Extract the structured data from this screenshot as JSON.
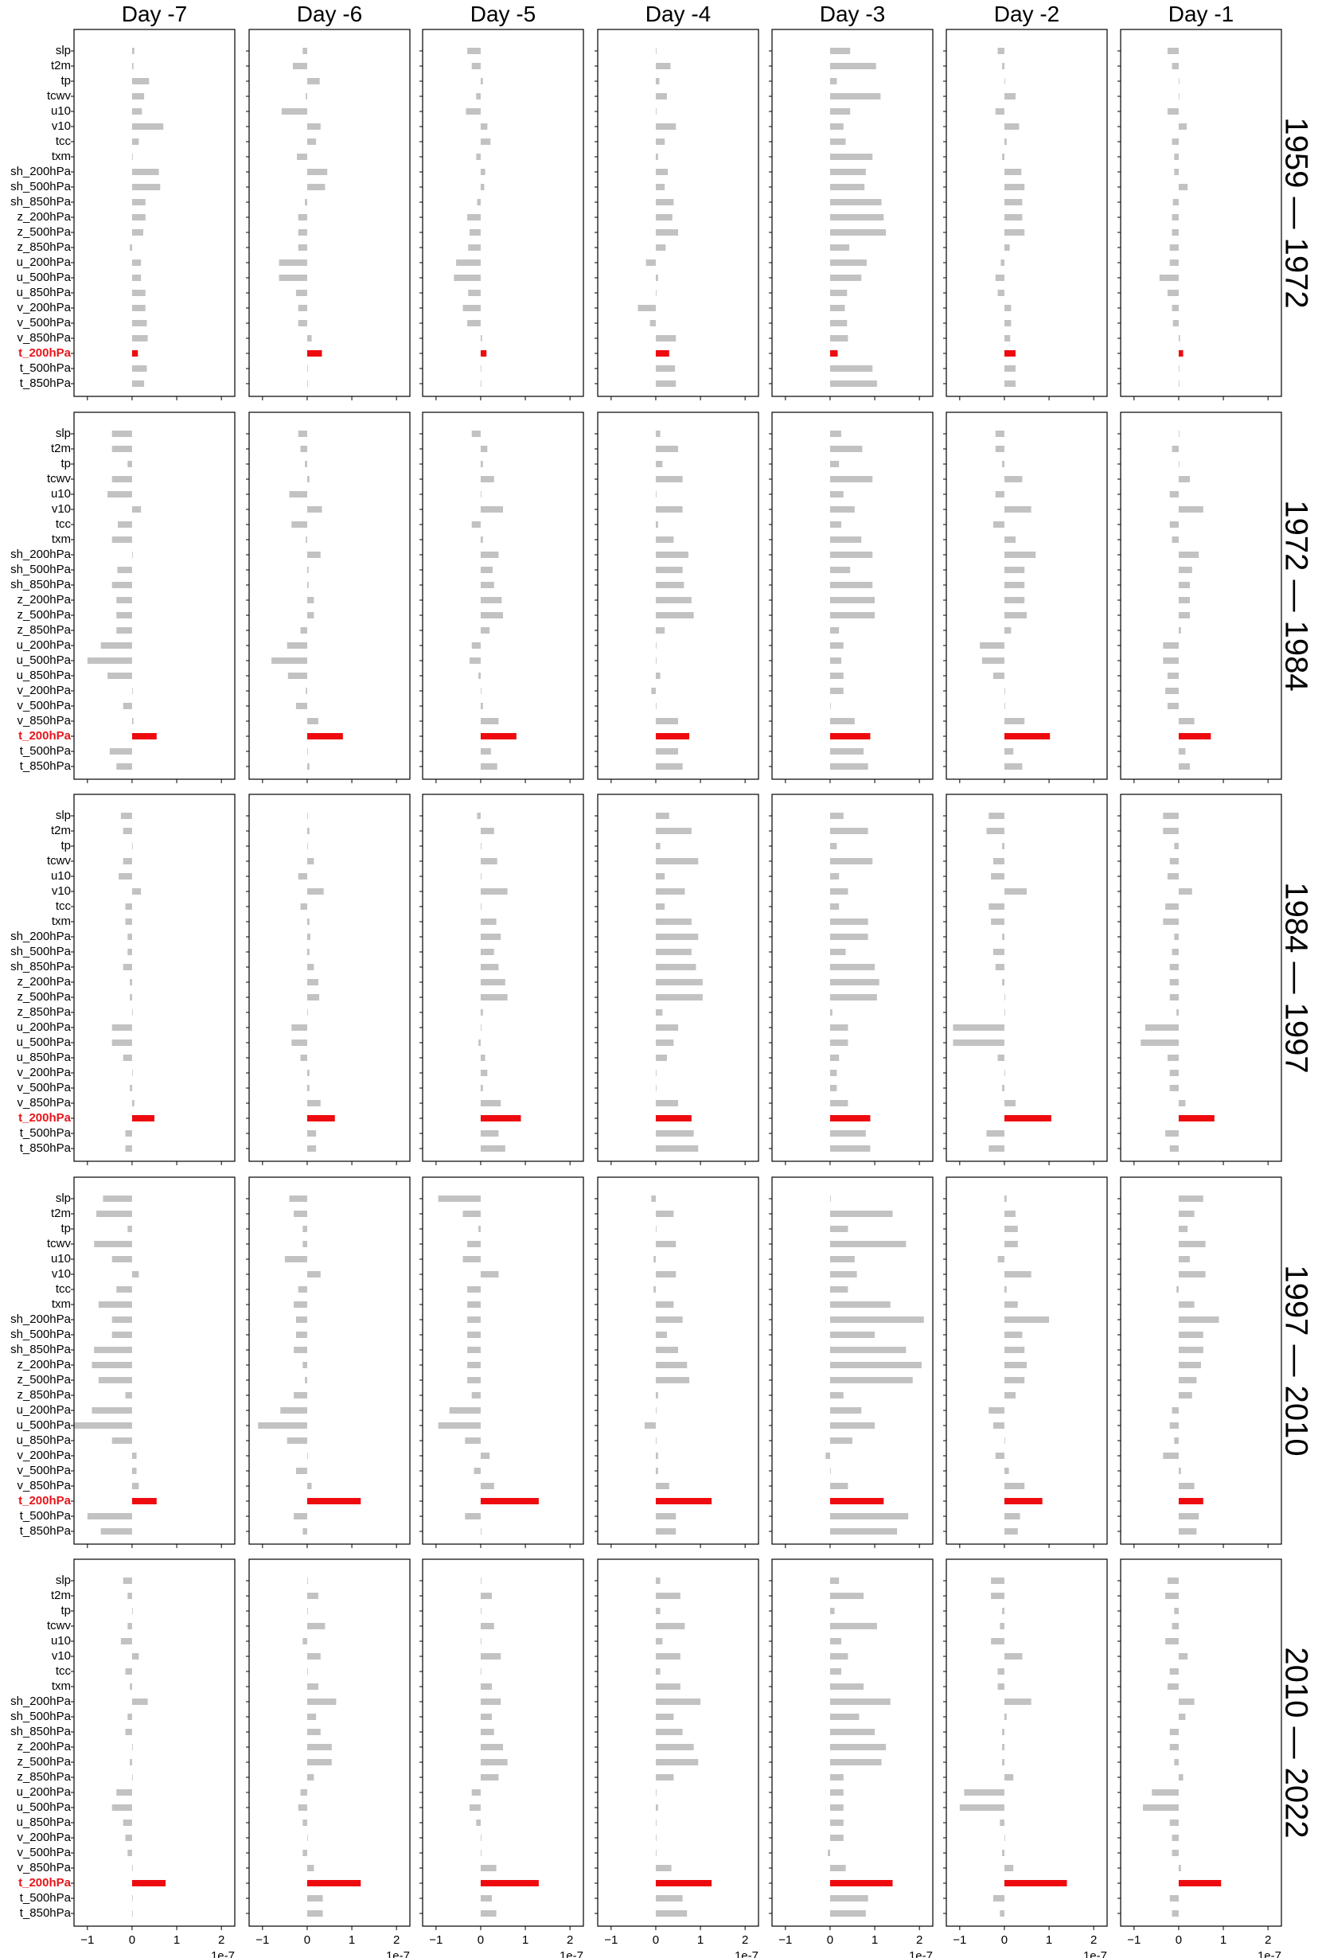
{
  "chart_data": {
    "type": "bar",
    "orientation": "horizontal",
    "columns": [
      "Day -7",
      "Day -6",
      "Day -5",
      "Day -4",
      "Day -3",
      "Day -2",
      "Day -1"
    ],
    "rows": [
      "1959 — 1972",
      "1972 — 1984",
      "1984 — 1997",
      "1997 — 2010",
      "2010 — 2022"
    ],
    "variables": [
      "slp",
      "t2m",
      "tp",
      "tcwv",
      "u10",
      "v10",
      "tcc",
      "txm",
      "sh_200hPa",
      "sh_500hPa",
      "sh_850hPa",
      "z_200hPa",
      "z_500hPa",
      "z_850hPa",
      "u_200hPa",
      "u_500hPa",
      "u_850hPa",
      "v_200hPa",
      "v_500hPa",
      "v_850hPa",
      "t_200hPa",
      "t_500hPa",
      "t_850hPa"
    ],
    "highlight_variable": "t_200hPa",
    "colors": {
      "bar": "#c2c2c2",
      "highlight": "#ee0b0f",
      "highlight_label": "#e8151b"
    },
    "xlim": [
      -1.3,
      2.3
    ],
    "xticks": [
      -1,
      0,
      1,
      2
    ],
    "xtick_labels": [
      "−1",
      "0",
      "1",
      "2"
    ],
    "x_offset_label": "1e-7",
    "grid": false,
    "values": [
      [
        [
          0.05,
          0.03,
          0.38,
          0.27,
          0.22,
          0.7,
          0.15,
          0.0,
          0.6,
          0.63,
          0.3,
          0.3,
          0.25,
          -0.05,
          0.2,
          0.2,
          0.3,
          0.3,
          0.33,
          0.35,
          0.13,
          0.33,
          0.27
        ],
        [
          -0.1,
          -0.32,
          0.28,
          -0.03,
          -0.57,
          0.3,
          0.2,
          -0.23,
          0.45,
          0.4,
          -0.05,
          -0.2,
          -0.2,
          -0.2,
          -0.63,
          -0.63,
          -0.25,
          -0.2,
          -0.2,
          0.1,
          0.33,
          0.0,
          0.0
        ],
        [
          -0.3,
          -0.2,
          0.05,
          -0.1,
          -0.33,
          0.15,
          0.22,
          -0.1,
          0.1,
          0.08,
          -0.08,
          -0.3,
          -0.25,
          -0.28,
          -0.55,
          -0.6,
          -0.28,
          -0.4,
          -0.3,
          0.03,
          0.13,
          0.0,
          0.0
        ],
        [
          0.0,
          0.33,
          0.08,
          0.25,
          0.0,
          0.45,
          0.2,
          0.05,
          0.27,
          0.2,
          0.4,
          0.37,
          0.5,
          0.22,
          -0.22,
          0.05,
          0.0,
          -0.4,
          -0.13,
          0.45,
          0.3,
          0.43,
          0.45
        ],
        [
          0.45,
          1.03,
          0.15,
          1.13,
          0.45,
          0.3,
          0.35,
          0.95,
          0.8,
          0.77,
          1.15,
          1.2,
          1.25,
          0.43,
          0.82,
          0.7,
          0.38,
          0.33,
          0.38,
          0.4,
          0.17,
          0.95,
          1.05
        ],
        [
          -0.15,
          -0.05,
          0.0,
          0.25,
          -0.2,
          0.33,
          0.05,
          -0.05,
          0.38,
          0.45,
          0.4,
          0.4,
          0.45,
          0.12,
          -0.08,
          -0.2,
          -0.15,
          0.15,
          0.15,
          0.13,
          0.25,
          0.25,
          0.25
        ],
        [
          -0.25,
          -0.15,
          0.0,
          0.0,
          -0.25,
          0.18,
          -0.15,
          -0.1,
          -0.1,
          0.2,
          -0.13,
          -0.15,
          -0.15,
          -0.2,
          -0.2,
          -0.43,
          -0.25,
          -0.15,
          -0.13,
          0.03,
          0.1,
          0.0,
          0.0
        ]
      ],
      [
        [
          -0.45,
          -0.45,
          -0.1,
          -0.45,
          -0.55,
          0.2,
          -0.32,
          -0.45,
          0.0,
          -0.33,
          -0.45,
          -0.35,
          -0.35,
          -0.35,
          -0.7,
          -1.0,
          -0.55,
          0.0,
          -0.2,
          0.03,
          0.55,
          -0.5,
          -0.35
        ],
        [
          -0.2,
          -0.15,
          -0.05,
          0.05,
          -0.4,
          0.33,
          -0.35,
          -0.03,
          0.3,
          0.03,
          0.03,
          0.15,
          0.15,
          -0.15,
          -0.45,
          -0.8,
          -0.43,
          -0.03,
          -0.25,
          0.25,
          0.8,
          0.0,
          0.05
        ],
        [
          -0.2,
          0.15,
          0.05,
          0.3,
          0.0,
          0.5,
          -0.2,
          0.05,
          0.4,
          0.27,
          0.3,
          0.47,
          0.5,
          0.2,
          -0.2,
          -0.25,
          -0.05,
          0.0,
          0.05,
          0.4,
          0.8,
          0.23,
          0.37
        ],
        [
          0.1,
          0.5,
          0.15,
          0.6,
          0.0,
          0.6,
          0.05,
          0.4,
          0.73,
          0.6,
          0.63,
          0.8,
          0.85,
          0.2,
          0.0,
          0.0,
          0.1,
          -0.1,
          0.0,
          0.5,
          0.75,
          0.5,
          0.6
        ],
        [
          0.25,
          0.72,
          0.2,
          0.95,
          0.3,
          0.55,
          0.25,
          0.7,
          0.95,
          0.45,
          0.95,
          1.0,
          1.0,
          0.2,
          0.3,
          0.25,
          0.3,
          0.3,
          0.0,
          0.55,
          0.9,
          0.75,
          0.85
        ],
        [
          -0.2,
          -0.2,
          -0.05,
          0.4,
          -0.2,
          0.6,
          -0.25,
          0.25,
          0.7,
          0.45,
          0.45,
          0.45,
          0.5,
          0.15,
          -0.55,
          -0.5,
          -0.25,
          0.0,
          0.0,
          0.45,
          1.02,
          0.2,
          0.4
        ],
        [
          0.0,
          -0.15,
          0.0,
          0.25,
          -0.2,
          0.55,
          -0.2,
          -0.15,
          0.45,
          0.3,
          0.25,
          0.25,
          0.25,
          0.05,
          -0.35,
          -0.35,
          -0.25,
          -0.3,
          -0.25,
          0.35,
          0.72,
          0.15,
          0.25
        ]
      ],
      [
        [
          -0.25,
          -0.2,
          0.0,
          -0.2,
          -0.3,
          0.2,
          -0.15,
          -0.15,
          -0.1,
          -0.1,
          -0.2,
          -0.05,
          -0.05,
          0.0,
          -0.45,
          -0.45,
          -0.2,
          0.0,
          -0.05,
          0.05,
          0.5,
          -0.15,
          -0.15
        ],
        [
          0.0,
          0.05,
          0.0,
          0.15,
          -0.2,
          0.37,
          -0.15,
          0.05,
          0.07,
          0.05,
          0.15,
          0.25,
          0.27,
          0.0,
          -0.35,
          -0.35,
          -0.15,
          0.05,
          0.05,
          0.3,
          0.62,
          0.2,
          0.2
        ],
        [
          -0.08,
          0.3,
          0.0,
          0.37,
          0.0,
          0.6,
          0.0,
          0.35,
          0.45,
          0.3,
          0.4,
          0.55,
          0.6,
          0.05,
          0.0,
          -0.05,
          0.1,
          0.15,
          0.05,
          0.45,
          0.9,
          0.4,
          0.55
        ],
        [
          0.3,
          0.8,
          0.1,
          0.95,
          0.2,
          0.65,
          0.2,
          0.8,
          0.95,
          0.8,
          0.9,
          1.05,
          1.05,
          0.15,
          0.5,
          0.4,
          0.25,
          0.0,
          0.0,
          0.5,
          0.8,
          0.85,
          0.95
        ],
        [
          0.3,
          0.85,
          0.15,
          0.95,
          0.2,
          0.4,
          0.2,
          0.85,
          0.85,
          0.35,
          1.0,
          1.1,
          1.05,
          0.05,
          0.4,
          0.4,
          0.2,
          0.15,
          0.15,
          0.4,
          0.9,
          0.8,
          0.9
        ],
        [
          -0.35,
          -0.4,
          -0.05,
          -0.25,
          -0.3,
          0.5,
          -0.35,
          -0.3,
          -0.05,
          -0.25,
          -0.2,
          -0.05,
          0.0,
          0.0,
          -1.15,
          -1.15,
          -0.15,
          0.0,
          -0.05,
          0.25,
          1.05,
          -0.4,
          -0.35
        ],
        [
          -0.35,
          -0.35,
          -0.1,
          -0.2,
          -0.25,
          0.3,
          -0.3,
          -0.35,
          -0.1,
          -0.15,
          -0.2,
          -0.2,
          -0.2,
          -0.05,
          -0.75,
          -0.85,
          -0.25,
          -0.2,
          -0.2,
          0.15,
          0.8,
          -0.3,
          -0.2
        ]
      ],
      [
        [
          -0.65,
          -0.8,
          -0.1,
          -0.85,
          -0.45,
          0.15,
          -0.35,
          -0.75,
          -0.45,
          -0.45,
          -0.85,
          -0.9,
          -0.75,
          -0.15,
          -0.9,
          -1.3,
          -0.45,
          0.1,
          0.1,
          0.15,
          0.55,
          -1.0,
          -0.7
        ],
        [
          -0.4,
          -0.3,
          -0.1,
          -0.1,
          -0.5,
          0.3,
          -0.2,
          -0.3,
          -0.25,
          -0.25,
          -0.3,
          -0.1,
          -0.05,
          -0.3,
          -0.6,
          -1.1,
          -0.45,
          0.0,
          -0.25,
          0.1,
          1.2,
          -0.3,
          -0.1
        ],
        [
          -0.95,
          -0.4,
          -0.05,
          -0.3,
          -0.4,
          0.4,
          -0.3,
          -0.3,
          -0.3,
          -0.3,
          -0.3,
          -0.3,
          -0.3,
          -0.2,
          -0.7,
          -0.95,
          -0.35,
          0.2,
          -0.15,
          0.3,
          1.3,
          -0.35,
          0.0
        ],
        [
          -0.1,
          0.4,
          0.0,
          0.45,
          -0.05,
          0.45,
          -0.05,
          0.4,
          0.6,
          0.25,
          0.5,
          0.7,
          0.75,
          0.05,
          0.0,
          -0.25,
          0.0,
          0.05,
          0.05,
          0.3,
          1.25,
          0.45,
          0.45
        ],
        [
          0.0,
          1.4,
          0.4,
          1.7,
          0.55,
          0.6,
          0.4,
          1.35,
          2.1,
          1.0,
          1.7,
          2.05,
          1.85,
          0.3,
          0.7,
          1.0,
          0.5,
          -0.1,
          0.0,
          0.4,
          1.2,
          1.75,
          1.5
        ],
        [
          0.05,
          0.25,
          0.3,
          0.3,
          -0.15,
          0.6,
          0.05,
          0.3,
          1.0,
          0.4,
          0.45,
          0.5,
          0.45,
          0.25,
          -0.35,
          -0.25,
          0.0,
          -0.2,
          0.1,
          0.45,
          0.85,
          0.35,
          0.3
        ],
        [
          0.55,
          0.35,
          0.2,
          0.6,
          0.25,
          0.6,
          -0.05,
          0.35,
          0.9,
          0.55,
          0.55,
          0.5,
          0.4,
          0.3,
          -0.15,
          -0.2,
          -0.1,
          -0.35,
          0.05,
          0.35,
          0.55,
          0.45,
          0.4
        ]
      ],
      [
        [
          -0.2,
          -0.1,
          0.0,
          -0.1,
          -0.25,
          0.15,
          -0.15,
          -0.05,
          0.35,
          -0.1,
          -0.15,
          0.0,
          -0.05,
          0.0,
          -0.35,
          -0.45,
          -0.2,
          -0.15,
          -0.1,
          0.0,
          0.75,
          0.0,
          0.0
        ],
        [
          0.0,
          0.25,
          0.0,
          0.4,
          -0.1,
          0.3,
          0.0,
          0.25,
          0.65,
          0.2,
          0.3,
          0.55,
          0.55,
          0.15,
          -0.15,
          -0.2,
          -0.1,
          0.0,
          -0.1,
          0.15,
          1.2,
          0.35,
          0.35
        ],
        [
          0.0,
          0.25,
          0.0,
          0.3,
          0.0,
          0.45,
          0.0,
          0.25,
          0.45,
          0.25,
          0.3,
          0.5,
          0.6,
          0.4,
          -0.2,
          -0.25,
          -0.1,
          0.0,
          0.0,
          0.35,
          1.3,
          0.25,
          0.35
        ],
        [
          0.1,
          0.55,
          0.1,
          0.65,
          0.15,
          0.55,
          0.1,
          0.55,
          1.0,
          0.4,
          0.6,
          0.85,
          0.95,
          0.4,
          0.0,
          0.05,
          0.0,
          0.0,
          0.0,
          0.35,
          1.25,
          0.6,
          0.7
        ],
        [
          0.2,
          0.75,
          0.1,
          1.05,
          0.25,
          0.4,
          0.25,
          0.75,
          1.35,
          0.65,
          1.0,
          1.25,
          1.15,
          0.3,
          0.3,
          0.3,
          0.3,
          0.3,
          -0.05,
          0.35,
          1.4,
          0.85,
          0.8
        ],
        [
          -0.3,
          -0.3,
          -0.05,
          -0.1,
          -0.3,
          0.4,
          -0.15,
          -0.15,
          0.6,
          0.05,
          -0.05,
          -0.05,
          -0.05,
          0.2,
          -0.9,
          -1.0,
          -0.1,
          0.0,
          -0.05,
          0.2,
          1.4,
          -0.25,
          -0.1
        ],
        [
          -0.25,
          -0.3,
          -0.1,
          -0.15,
          -0.3,
          0.2,
          -0.2,
          -0.25,
          0.35,
          0.15,
          -0.2,
          -0.2,
          -0.1,
          0.1,
          -0.6,
          -0.8,
          -0.2,
          -0.15,
          -0.15,
          0.05,
          0.95,
          -0.2,
          -0.15
        ]
      ]
    ]
  }
}
